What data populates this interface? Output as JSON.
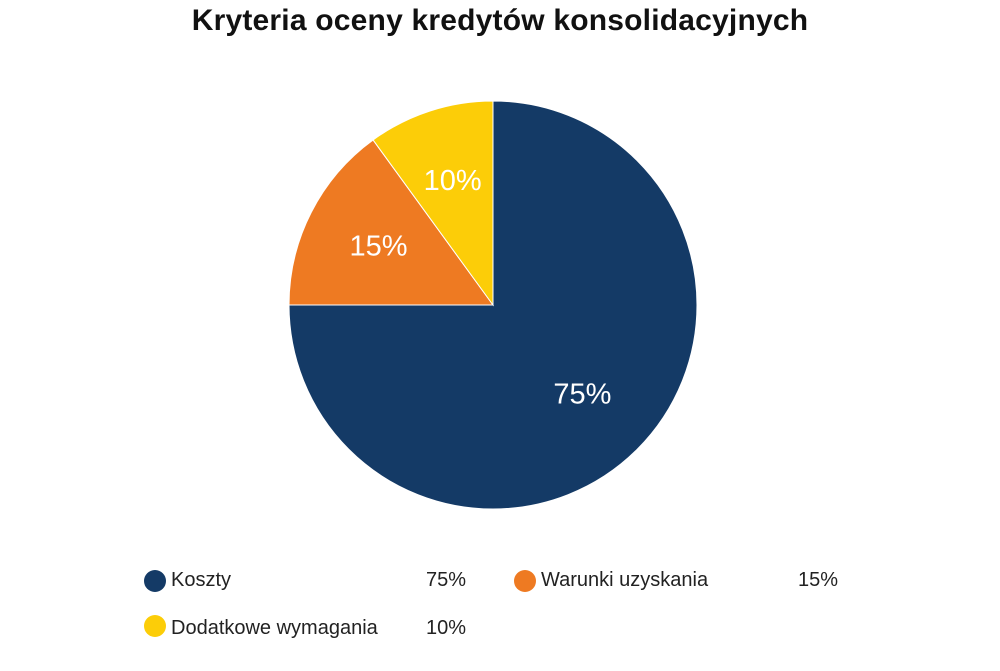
{
  "chart_data": {
    "type": "pie",
    "title": "Kryteria oceny kredytów konsolidacyjnych",
    "slices": [
      {
        "name": "Koszty",
        "value": 75,
        "label": "75%",
        "color": "#143a66"
      },
      {
        "name": "Warunki uzyskania",
        "value": 15,
        "label": "15%",
        "color": "#ee7a22"
      },
      {
        "name": "Dodatkowe wymagania",
        "value": 10,
        "label": "10%",
        "color": "#fccd08"
      }
    ],
    "legend": {
      "placement": "bottom",
      "items": [
        {
          "name": "Koszty",
          "value_label": "75%",
          "color": "#143a66"
        },
        {
          "name": "Warunki uzyskania",
          "value_label": "15%",
          "color": "#ee7a22"
        },
        {
          "name": "Dodatkowe wymagania",
          "value_label": "10%",
          "color": "#fccd08"
        }
      ]
    }
  }
}
